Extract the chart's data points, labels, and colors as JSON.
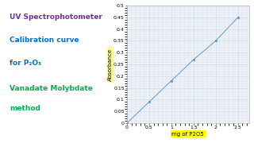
{
  "x": [
    0,
    0.5,
    1.0,
    1.5,
    2.0,
    2.5
  ],
  "y": [
    0,
    0.09,
    0.18,
    0.27,
    0.35,
    0.45
  ],
  "line_color": "#5b9bd5",
  "marker_color": "#5b9bd5",
  "xlabel": "mg of P2O5",
  "ylabel": "Absorbance",
  "xlim": [
    0,
    2.75
  ],
  "ylim": [
    0,
    0.5
  ],
  "xticks": [
    0,
    0.5,
    1.0,
    1.5,
    2.0,
    2.5
  ],
  "yticks": [
    0,
    0.05,
    0.1,
    0.15,
    0.2,
    0.25,
    0.3,
    0.35,
    0.4,
    0.45,
    0.5
  ],
  "grid_color": "#c8d8e8",
  "bg_color": "#ffffff",
  "plot_bg": "#eef2f7",
  "left_lines": [
    {
      "text": "UV Spectrophotometer",
      "color": "#7030a0",
      "fontsize": 6.5,
      "weight": "bold"
    },
    {
      "text": "Calibration curve",
      "color": "#0070c0",
      "fontsize": 6.5,
      "weight": "bold"
    },
    {
      "text": "for P₂O₅",
      "color": "#0070c0",
      "fontsize": 6.5,
      "weight": "bold"
    },
    {
      "text": "Vanadate Molybdate",
      "color": "#00b050",
      "fontsize": 6.5,
      "weight": "bold"
    },
    {
      "text": "method",
      "color": "#00b050",
      "fontsize": 6.5,
      "weight": "bold"
    }
  ],
  "xlabel_bg": "#ffff00",
  "ylabel_bg": "#ffffa0",
  "tick_fontsize": 4.5,
  "axis_label_fontsize": 5.0
}
